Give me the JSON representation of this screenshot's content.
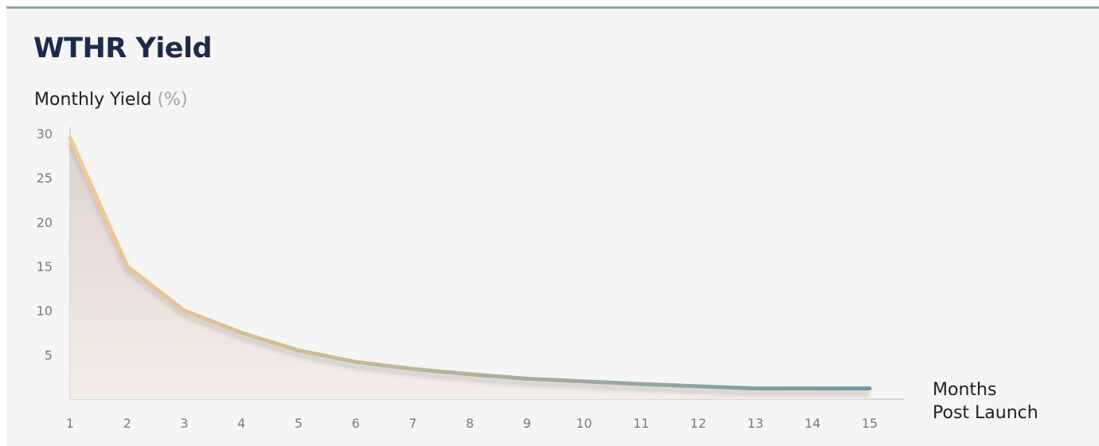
{
  "chart_data": {
    "type": "area",
    "title": "WTHR Yield",
    "ylabel": {
      "text": "Monthly Yield",
      "unit": "(%)"
    },
    "xlabel": {
      "line1": "Months",
      "line2": "Post Launch"
    },
    "x": [
      1,
      2,
      3,
      4,
      5,
      6,
      7,
      8,
      9,
      10,
      11,
      12,
      13,
      14,
      15
    ],
    "values": [
      29.5,
      15.0,
      10.0,
      7.5,
      5.5,
      4.2,
      3.4,
      2.8,
      2.3,
      2.0,
      1.7,
      1.45,
      1.2,
      1.2,
      1.2
    ],
    "yticks": [
      5,
      10,
      15,
      20,
      25,
      30
    ],
    "ylim": [
      0,
      30
    ],
    "xlim": [
      1,
      15
    ],
    "grid": false,
    "legend": "none",
    "colors": {
      "line_start": "#f5c993",
      "line_end": "#6f98a6",
      "fill_top": "#ddd3cf",
      "fill_bottom": "#f3eee9",
      "axis": "#cccccc",
      "tick_text": "#7b7b7b",
      "title": "#1d2b4b"
    }
  }
}
